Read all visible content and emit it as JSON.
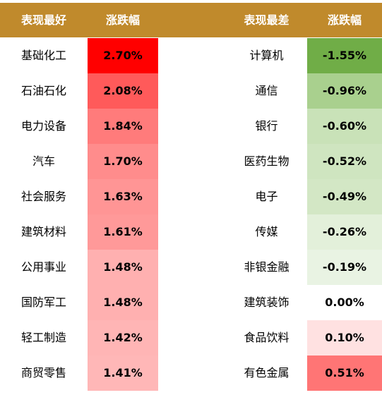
{
  "header": {
    "best_label": "表现最好",
    "best_change_label": "涨跌幅",
    "worst_label": "表现最差",
    "worst_change_label": "涨跌幅"
  },
  "rows": [
    {
      "best": "基础化工",
      "best_change": "2.70%",
      "best_color": "#ff0000",
      "worst": "计算机",
      "worst_change": "-1.55%",
      "worst_color": "#70ad47"
    },
    {
      "best": "石油石化",
      "best_change": "2.08%",
      "best_color": "#ff5a5a",
      "worst": "通信",
      "worst_change": "-0.96%",
      "worst_color": "#a9d08e"
    },
    {
      "best": "电力设备",
      "best_change": "1.84%",
      "best_color": "#ff7b7b",
      "worst": "银行",
      "worst_change": "-0.60%",
      "worst_color": "#c9e2b8"
    },
    {
      "best": "汽车",
      "best_change": "1.70%",
      "best_color": "#ff8c8c",
      "worst": "医药生物",
      "worst_change": "-0.52%",
      "worst_color": "#cfe5c0"
    },
    {
      "best": "社会服务",
      "best_change": "1.63%",
      "best_color": "#ff9595",
      "worst": "电子",
      "worst_change": "-0.49%",
      "worst_color": "#d3e7c5"
    },
    {
      "best": "建筑材料",
      "best_change": "1.61%",
      "best_color": "#ff9999",
      "worst": "传媒",
      "worst_change": "-0.26%",
      "worst_color": "#e3f0da"
    },
    {
      "best": "公用事业",
      "best_change": "1.48%",
      "best_color": "#ffb0b0",
      "worst": "非银金融",
      "worst_change": "-0.19%",
      "worst_color": "#e9f3e3"
    },
    {
      "best": "国防军工",
      "best_change": "1.48%",
      "best_color": "#ffb0b0",
      "worst": "建筑装饰",
      "worst_change": "0.00%",
      "worst_color": "#ffffff"
    },
    {
      "best": "轻工制造",
      "best_change": "1.42%",
      "best_color": "#ffb5b5",
      "worst": "食品饮料",
      "worst_change": "0.10%",
      "worst_color": "#ffe1e1"
    },
    {
      "best": "商贸零售",
      "best_change": "1.41%",
      "best_color": "#ffb7b7",
      "worst": "有色金属",
      "worst_change": "0.51%",
      "worst_color": "#ff7575"
    }
  ]
}
